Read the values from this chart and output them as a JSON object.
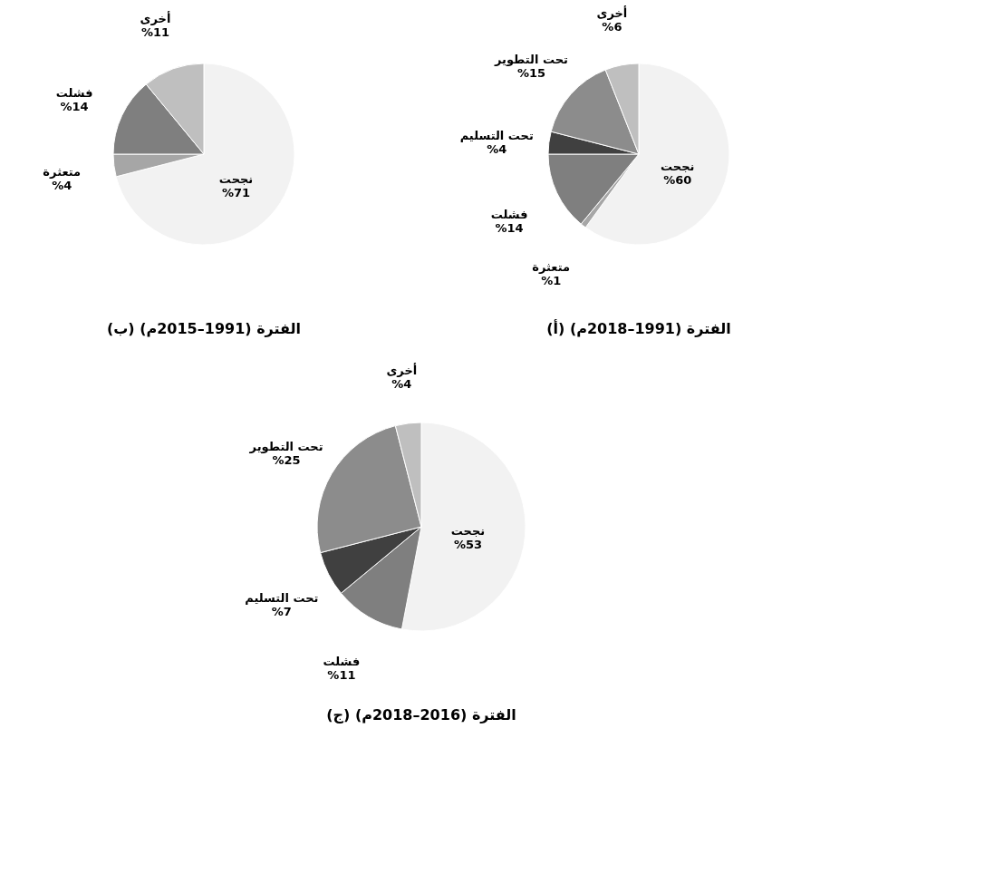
{
  "chart_data": [
    {
      "type": "pie",
      "title": "(أ) الفترة (1991–2018م)",
      "categories": [
        "نجحت",
        "متعثرة",
        "فشلت",
        "تحت التسليم",
        "تحت التطوير",
        "أخرى"
      ],
      "values": [
        60,
        1,
        14,
        4,
        15,
        6
      ],
      "value_labels": [
        "%60",
        "%1",
        "%14",
        "%4",
        "%15",
        "%6"
      ],
      "colors": [
        "#f2f2f2",
        "#a6a6a6",
        "#7f7f7f",
        "#404040",
        "#8c8c8c",
        "#bfbfbf"
      ]
    },
    {
      "type": "pie",
      "title": "(ب) الفترة (1991–2015م)",
      "categories": [
        "نجحت",
        "متعثرة",
        "فشلت",
        "أخرى"
      ],
      "values": [
        71,
        4,
        14,
        11
      ],
      "value_labels": [
        "%71",
        "%4",
        "%14",
        "%11"
      ],
      "colors": [
        "#f2f2f2",
        "#a6a6a6",
        "#7f7f7f",
        "#bfbfbf"
      ]
    },
    {
      "type": "pie",
      "title": "(ج) الفترة (2016–2018م)",
      "categories": [
        "نجحت",
        "فشلت",
        "تحت التسليم",
        "تحت التطوير",
        "أخرى"
      ],
      "values": [
        53,
        11,
        7,
        25,
        4
      ],
      "value_labels": [
        "%53",
        "%11",
        "%7",
        "%25",
        "%4"
      ],
      "colors": [
        "#f2f2f2",
        "#7f7f7f",
        "#404040",
        "#8c8c8c",
        "#bfbfbf"
      ]
    }
  ]
}
